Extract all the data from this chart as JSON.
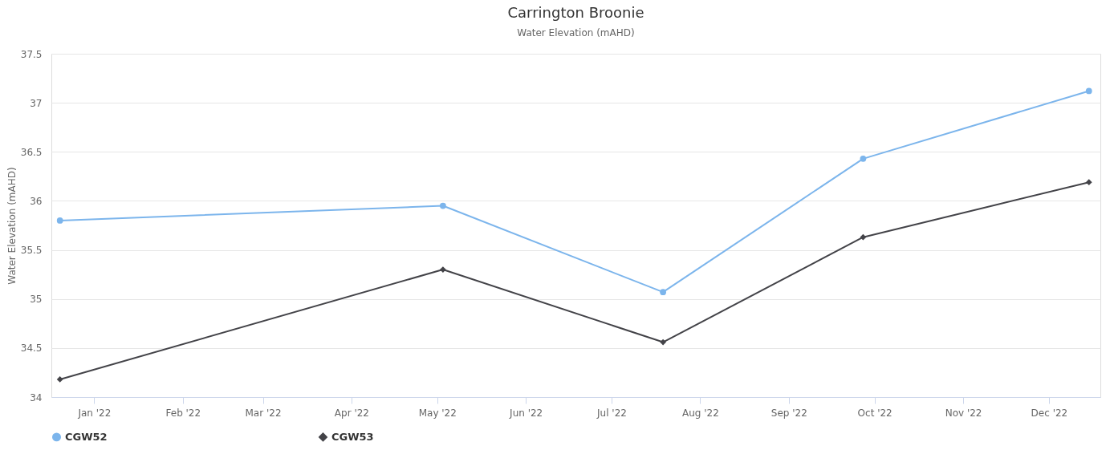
{
  "chart_data": {
    "type": "line",
    "title": "Carrington Broonie",
    "subtitle": "Water Elevation (mAHD)",
    "ylabel": "Water Elevation (mAHD)",
    "x": [
      "2021-12-20",
      "2022-05-03",
      "2022-07-19",
      "2022-09-27",
      "2022-12-15"
    ],
    "series": [
      {
        "name": "CGW52",
        "color": "#7cb5ec",
        "marker": "circle",
        "values": [
          35.8,
          35.95,
          35.07,
          36.43,
          37.12
        ]
      },
      {
        "name": "CGW53",
        "color": "#434348",
        "marker": "diamond",
        "values": [
          34.18,
          35.3,
          34.56,
          35.63,
          36.19
        ]
      }
    ],
    "xlim": [
      "2021-12-17",
      "2022-12-19"
    ],
    "xticks": [
      {
        "value": "2022-01-01",
        "label": "Jan '22"
      },
      {
        "value": "2022-02-01",
        "label": "Feb '22"
      },
      {
        "value": "2022-03-01",
        "label": "Mar '22"
      },
      {
        "value": "2022-04-01",
        "label": "Apr '22"
      },
      {
        "value": "2022-05-01",
        "label": "May '22"
      },
      {
        "value": "2022-06-01",
        "label": "Jun '22"
      },
      {
        "value": "2022-07-01",
        "label": "Jul '22"
      },
      {
        "value": "2022-08-01",
        "label": "Aug '22"
      },
      {
        "value": "2022-09-01",
        "label": "Sep '22"
      },
      {
        "value": "2022-10-01",
        "label": "Oct '22"
      },
      {
        "value": "2022-11-01",
        "label": "Nov '22"
      },
      {
        "value": "2022-12-01",
        "label": "Dec '22"
      }
    ],
    "ylim": [
      34,
      37.5
    ],
    "yticks": [
      34,
      34.5,
      35,
      35.5,
      36,
      36.5,
      37,
      37.5
    ],
    "grid": "y",
    "legend": "bottom",
    "line_style": "solid"
  }
}
